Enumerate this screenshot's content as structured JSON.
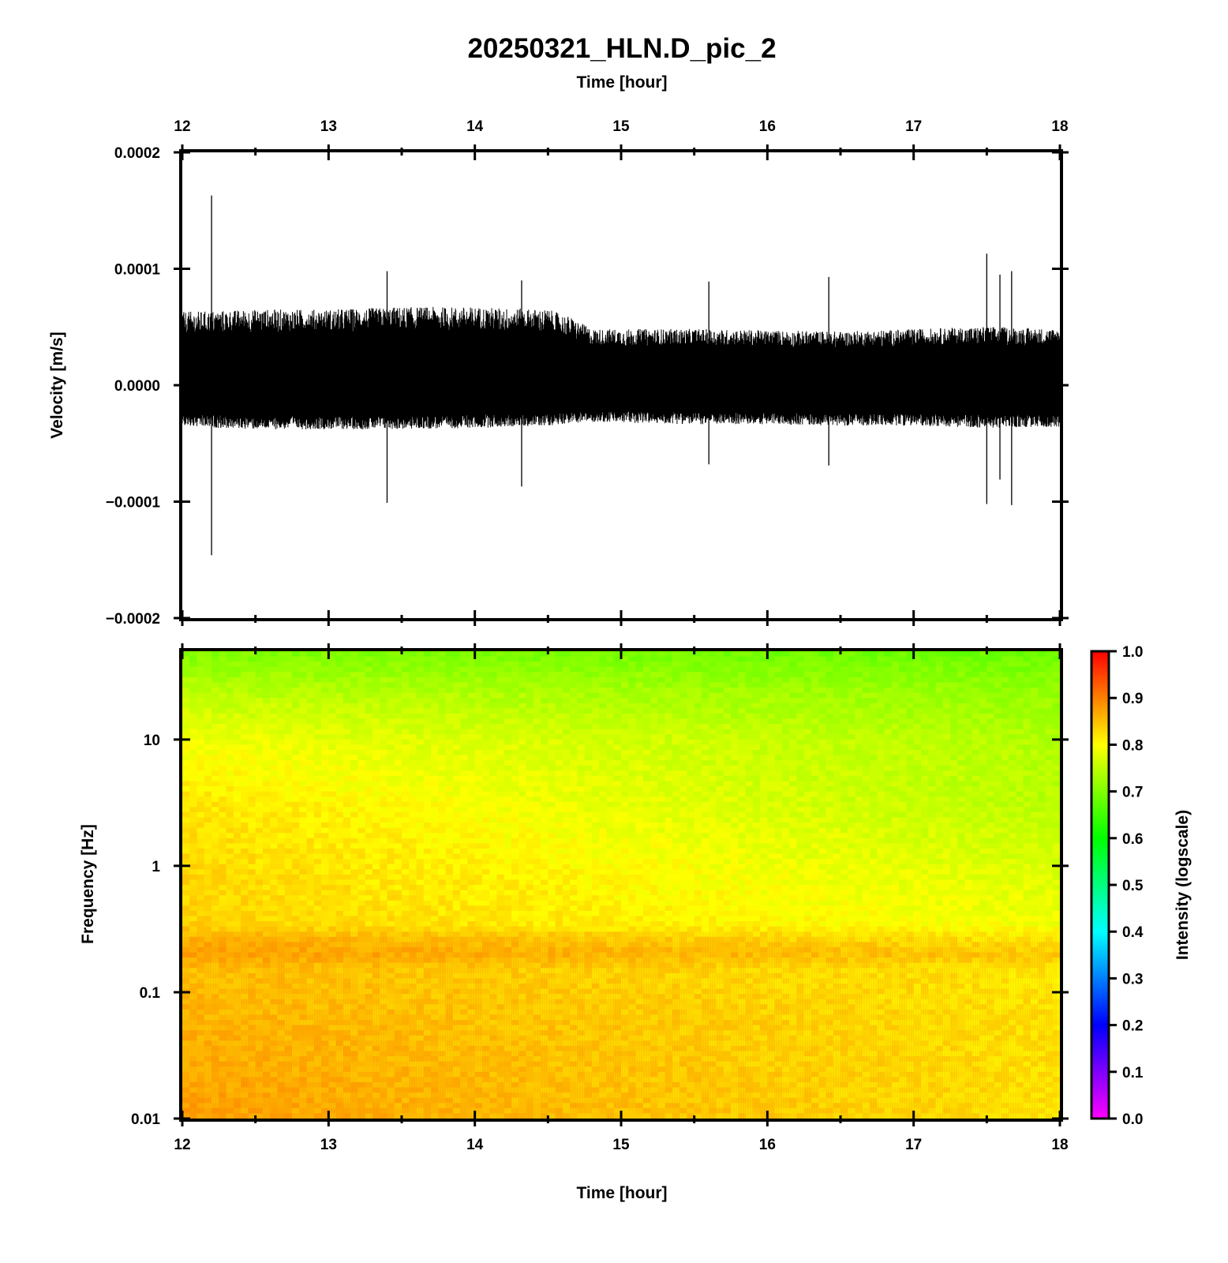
{
  "chart_data": [
    {
      "type": "line",
      "title": "20250321_HLN.D_pic_2",
      "xlabel": "Time [hour]",
      "ylabel": "Velocity [m/s]",
      "xlim": [
        12,
        18
      ],
      "ylim": [
        -0.0002,
        0.0002
      ],
      "x_ticks": [
        12,
        13,
        14,
        15,
        16,
        17,
        18
      ],
      "x_tick_labels": [
        "12",
        "13",
        "14",
        "15",
        "16",
        "17",
        "18"
      ],
      "y_ticks": [
        0.0002,
        0.0001,
        0.0,
        -0.0001,
        -0.0002
      ],
      "y_tick_labels": [
        "0.0002",
        "0.0001",
        "0.0000",
        "−0.0001",
        "−0.0002"
      ],
      "x_axis_position": "top",
      "grid": false,
      "series": [
        {
          "color": "#000000",
          "envelope": [
            {
              "x": 12.0,
              "upper": 6e-05,
              "lower": -3.4e-05
            },
            {
              "x": 12.5,
              "upper": 6.2e-05,
              "lower": -3.6e-05
            },
            {
              "x": 13.0,
              "upper": 6.2e-05,
              "lower": -3.6e-05
            },
            {
              "x": 13.5,
              "upper": 6.4e-05,
              "lower": -3.6e-05
            },
            {
              "x": 14.0,
              "upper": 6.4e-05,
              "lower": -3.5e-05
            },
            {
              "x": 14.5,
              "upper": 6.2e-05,
              "lower": -3.3e-05
            },
            {
              "x": 14.65,
              "upper": 5.6e-05,
              "lower": -3.1e-05
            },
            {
              "x": 14.8,
              "upper": 4.6e-05,
              "lower": -3e-05
            },
            {
              "x": 15.5,
              "upper": 4.6e-05,
              "lower": -3.2e-05
            },
            {
              "x": 16.0,
              "upper": 4.5e-05,
              "lower": -3.2e-05
            },
            {
              "x": 16.5,
              "upper": 4.4e-05,
              "lower": -3.3e-05
            },
            {
              "x": 17.0,
              "upper": 4.6e-05,
              "lower": -3.3e-05
            },
            {
              "x": 17.5,
              "upper": 4.8e-05,
              "lower": -3.5e-05
            },
            {
              "x": 18.0,
              "upper": 4.6e-05,
              "lower": -3.4e-05
            }
          ],
          "spikes": [
            {
              "x": 12.2,
              "max": 0.000163,
              "min": -0.000146
            },
            {
              "x": 13.4,
              "max": 9.8e-05,
              "min": -0.000101
            },
            {
              "x": 14.32,
              "max": 9e-05,
              "min": -8.7e-05
            },
            {
              "x": 15.6,
              "max": 8.9e-05,
              "min": -6.8e-05
            },
            {
              "x": 16.42,
              "max": 9.3e-05,
              "min": -6.9e-05
            },
            {
              "x": 17.5,
              "max": 0.000113,
              "min": -0.000102
            },
            {
              "x": 17.59,
              "max": 9.5e-05,
              "min": -8.1e-05
            },
            {
              "x": 17.67,
              "max": 9.8e-05,
              "min": -0.000103
            }
          ]
        }
      ]
    },
    {
      "type": "heatmap",
      "xlabel": "Time [hour]",
      "ylabel": "Frequency [Hz]",
      "xlim": [
        12,
        18
      ],
      "ylim": [
        0.01,
        50
      ],
      "yscale": "log",
      "x_ticks": [
        12,
        13,
        14,
        15,
        16,
        17,
        18
      ],
      "x_tick_labels": [
        "12",
        "13",
        "14",
        "15",
        "16",
        "17",
        "18"
      ],
      "y_ticks": [
        0.01,
        0.1,
        1,
        10
      ],
      "y_tick_labels": [
        "0.01",
        "0.1",
        "1",
        "10"
      ],
      "colorbar": {
        "label": "Intensity (logscale)",
        "range": [
          0,
          1
        ],
        "ticks": [
          0.0,
          0.1,
          0.2,
          0.3,
          0.4,
          0.5,
          0.6,
          0.7,
          0.8,
          0.9,
          1.0
        ],
        "tick_labels": [
          "0.0",
          "0.1",
          "0.2",
          "0.3",
          "0.4",
          "0.5",
          "0.6",
          "0.7",
          "0.8",
          "0.9",
          "1.0"
        ],
        "position": "right",
        "colormap": [
          {
            "value": 0.0,
            "color": "#ff00ff"
          },
          {
            "value": 0.2,
            "color": "#0000ff"
          },
          {
            "value": 0.4,
            "color": "#00ffff"
          },
          {
            "value": 0.6,
            "color": "#00ff00"
          },
          {
            "value": 0.8,
            "color": "#ffff00"
          },
          {
            "value": 1.0,
            "color": "#ff0000"
          }
        ]
      },
      "intensity_profile": [
        {
          "freq": 0.01,
          "intensity": 0.875,
          "intensity_end": 0.82
        },
        {
          "freq": 0.05,
          "intensity": 0.86,
          "intensity_end": 0.82
        },
        {
          "freq": 0.15,
          "intensity": 0.85,
          "intensity_end": 0.815
        },
        {
          "freq": 0.2,
          "intensity": 0.875,
          "intensity_end": 0.84
        },
        {
          "freq": 0.25,
          "intensity": 0.865,
          "intensity_end": 0.82
        },
        {
          "freq": 0.35,
          "intensity": 0.835,
          "intensity_end": 0.79
        },
        {
          "freq": 1,
          "intensity": 0.83,
          "intensity_end": 0.77
        },
        {
          "freq": 3,
          "intensity": 0.82,
          "intensity_end": 0.745
        },
        {
          "freq": 10,
          "intensity": 0.79,
          "intensity_end": 0.74
        },
        {
          "freq": 25,
          "intensity": 0.745,
          "intensity_end": 0.715
        },
        {
          "freq": 50,
          "intensity": 0.7,
          "intensity_end": 0.68
        }
      ]
    }
  ]
}
